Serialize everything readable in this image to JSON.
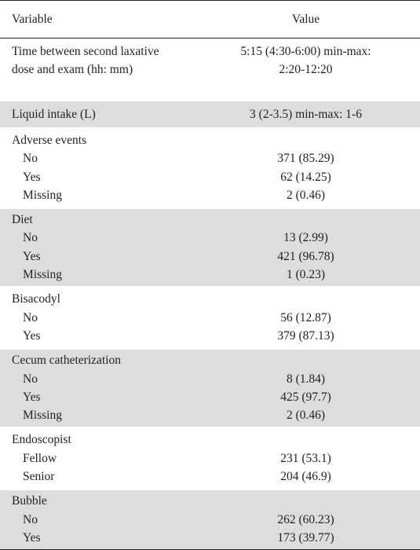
{
  "table": {
    "headers": {
      "variable": "Variable",
      "value": "Value"
    },
    "groups": [
      {
        "rows": [
          {
            "label": "Time between second laxative",
            "value": "5:15 (4:30-6:00) min-max:"
          },
          {
            "label": "dose and exam (hh: mm)",
            "value": "2:20-12:20"
          }
        ]
      },
      {
        "rows": [
          {
            "label": "Liquid intake (L)",
            "value": "3 (2-3.5) min-max: 1-6"
          }
        ]
      },
      {
        "title": "Adverse events",
        "rows": [
          {
            "label": "No",
            "value": "371 (85.29)"
          },
          {
            "label": "Yes",
            "value": "62 (14.25)"
          },
          {
            "label": "Missing",
            "value": "2 (0.46)"
          }
        ]
      },
      {
        "title": "Diet",
        "rows": [
          {
            "label": "No",
            "value": "13 (2.99)"
          },
          {
            "label": "Yes",
            "value": "421 (96.78)"
          },
          {
            "label": "Missing",
            "value": "1 (0.23)"
          }
        ]
      },
      {
        "title": "Bisacodyl",
        "rows": [
          {
            "label": "No",
            "value": "56 (12.87)"
          },
          {
            "label": "Yes",
            "value": "379 (87.13)"
          }
        ]
      },
      {
        "title": "Cecum catheterization",
        "rows": [
          {
            "label": "No",
            "value": "8 (1.84)"
          },
          {
            "label": "Yes",
            "value": "425 (97.7)"
          },
          {
            "label": "Missing",
            "value": "2 (0.46)"
          }
        ]
      },
      {
        "title": "Endoscopist",
        "rows": [
          {
            "label": "Fellow",
            "value": "231 (53.1)"
          },
          {
            "label": "Senior",
            "value": "204 (46.9)"
          }
        ]
      },
      {
        "title": "Bubble",
        "rows": [
          {
            "label": "No",
            "value": "262 (60.23)"
          },
          {
            "label": "Yes",
            "value": "173 (39.77)"
          }
        ]
      }
    ]
  }
}
